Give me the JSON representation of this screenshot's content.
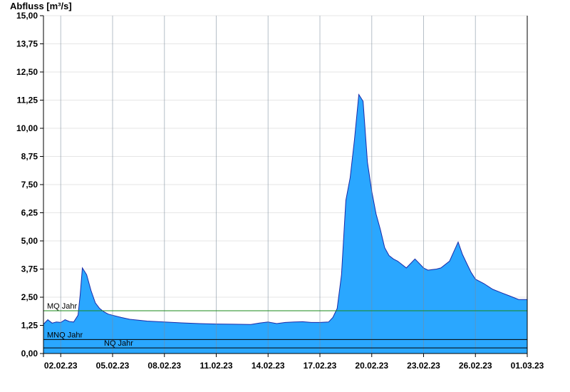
{
  "chart_data": {
    "type": "area",
    "title": "",
    "ylabel": "Abfluss [m³/s]",
    "xlabel": "",
    "ylim": [
      0,
      15
    ],
    "xlim": [
      "2023-02-01",
      "2023-03-01"
    ],
    "grid": true,
    "y_ticks": [
      "0,00",
      "1,25",
      "2,50",
      "3,75",
      "5,00",
      "6,25",
      "7,50",
      "8,75",
      "10,00",
      "11,25",
      "12,50",
      "13,75",
      "15,00"
    ],
    "x_ticks": [
      {
        "date": "2023-02-02",
        "label": "02.02.23"
      },
      {
        "date": "2023-02-05",
        "label": "05.02.23"
      },
      {
        "date": "2023-02-08",
        "label": "08.02.23"
      },
      {
        "date": "2023-02-11",
        "label": "11.02.23"
      },
      {
        "date": "2023-02-14",
        "label": "14.02.23"
      },
      {
        "date": "2023-02-17",
        "label": "17.02.23"
      },
      {
        "date": "2023-02-20",
        "label": "20.02.23"
      },
      {
        "date": "2023-02-23",
        "label": "23.02.23"
      },
      {
        "date": "2023-02-26",
        "label": "26.02.23"
      },
      {
        "date": "2023-03-01",
        "label": "01.03.23"
      }
    ],
    "series": [
      {
        "color": "#2aa7ff",
        "line_color": "#1a2aa8",
        "x": [
          "2023-02-01 00:00",
          "2023-02-01 06:00",
          "2023-02-01 12:00",
          "2023-02-01 18:00",
          "2023-02-02 00:00",
          "2023-02-02 06:00",
          "2023-02-02 12:00",
          "2023-02-02 18:00",
          "2023-02-03 00:00",
          "2023-02-03 03:00",
          "2023-02-03 06:00",
          "2023-02-03 12:00",
          "2023-02-03 18:00",
          "2023-02-04 00:00",
          "2023-02-04 06:00",
          "2023-02-04 12:00",
          "2023-02-04 18:00",
          "2023-02-05 00:00",
          "2023-02-05 12:00",
          "2023-02-06 00:00",
          "2023-02-06 12:00",
          "2023-02-07 00:00",
          "2023-02-08 00:00",
          "2023-02-09 00:00",
          "2023-02-10 00:00",
          "2023-02-11 00:00",
          "2023-02-12 00:00",
          "2023-02-13 00:00",
          "2023-02-13 12:00",
          "2023-02-14 00:00",
          "2023-02-14 12:00",
          "2023-02-15 00:00",
          "2023-02-15 12:00",
          "2023-02-16 00:00",
          "2023-02-16 12:00",
          "2023-02-17 00:00",
          "2023-02-17 12:00",
          "2023-02-17 18:00",
          "2023-02-18 00:00",
          "2023-02-18 06:00",
          "2023-02-18 12:00",
          "2023-02-18 18:00",
          "2023-02-19 00:00",
          "2023-02-19 06:00",
          "2023-02-19 12:00",
          "2023-02-19 18:00",
          "2023-02-20 00:00",
          "2023-02-20 06:00",
          "2023-02-20 12:00",
          "2023-02-20 18:00",
          "2023-02-21 00:00",
          "2023-02-21 06:00",
          "2023-02-21 12:00",
          "2023-02-22 00:00",
          "2023-02-22 12:00",
          "2023-02-23 00:00",
          "2023-02-23 06:00",
          "2023-02-23 18:00",
          "2023-02-24 00:00",
          "2023-02-24 12:00",
          "2023-02-25 00:00",
          "2023-02-25 06:00",
          "2023-02-25 12:00",
          "2023-02-25 18:00",
          "2023-02-26 00:00",
          "2023-02-26 12:00",
          "2023-02-27 00:00",
          "2023-02-27 12:00",
          "2023-02-28 00:00",
          "2023-02-28 12:00",
          "2023-03-01 00:00"
        ],
        "y": [
          1.3,
          1.5,
          1.35,
          1.4,
          1.38,
          1.5,
          1.42,
          1.4,
          1.7,
          2.6,
          3.8,
          3.5,
          2.8,
          2.25,
          2.0,
          1.85,
          1.75,
          1.7,
          1.6,
          1.52,
          1.48,
          1.44,
          1.4,
          1.36,
          1.33,
          1.31,
          1.3,
          1.29,
          1.35,
          1.4,
          1.33,
          1.38,
          1.4,
          1.41,
          1.38,
          1.38,
          1.4,
          1.6,
          2.0,
          3.5,
          6.8,
          7.8,
          9.5,
          11.5,
          11.2,
          8.5,
          7.2,
          6.2,
          5.5,
          4.7,
          4.35,
          4.2,
          4.1,
          3.8,
          4.2,
          3.8,
          3.7,
          3.75,
          3.8,
          4.1,
          4.95,
          4.4,
          4.0,
          3.6,
          3.3,
          3.1,
          2.85,
          2.7,
          2.55,
          2.4,
          2.4
        ]
      }
    ],
    "reference_lines": [
      {
        "label": "MQ Jahr",
        "value": 1.9,
        "color": "#1a8a1a"
      },
      {
        "label": "MNQ Jahr",
        "value": 0.62,
        "color": "#000000"
      },
      {
        "label": "NQ Jahr",
        "value": 0.25,
        "color": "#000000"
      }
    ]
  }
}
